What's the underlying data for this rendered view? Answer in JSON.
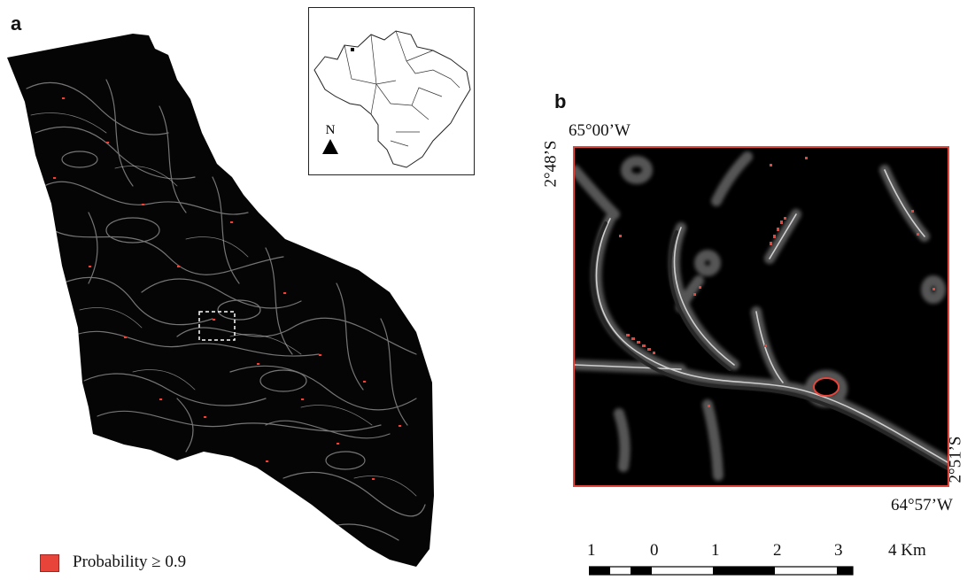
{
  "panels": {
    "a": "a",
    "b": "b"
  },
  "inset_map": {
    "north_label": "N"
  },
  "zoom_panel": {
    "coord_top_longitude": "65°00’W",
    "coord_left_latitude": "2°48’S",
    "coord_right_latitude": "2°51’S",
    "coord_bottom_longitude": "64°57’W"
  },
  "scale_bar": {
    "labels": [
      "1",
      "0",
      "1",
      "2",
      "3",
      "4 Km"
    ],
    "unit": "Km"
  },
  "legend": {
    "label": "Probability ≥ 0.9",
    "color": "#e8443a"
  },
  "colors": {
    "high_probability": "#e8443a",
    "frame_red": "#e0463c",
    "background": "#000000"
  }
}
